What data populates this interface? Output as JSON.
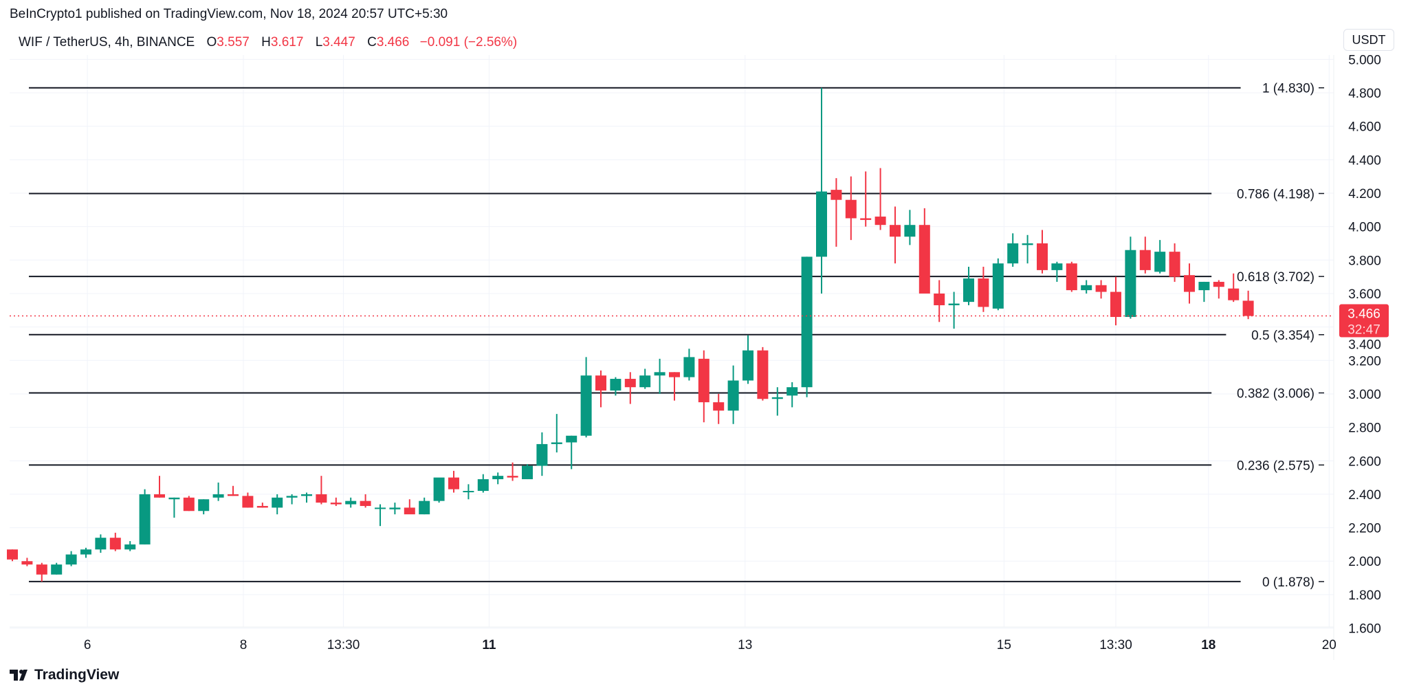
{
  "header": {
    "published": "BeInCrypto1 published on TradingView.com, Nov 18, 2024 20:57 UTC+5:30"
  },
  "legend": {
    "symbol": "WIF / TetherUS, 4h, BINANCE",
    "o_label": "O",
    "o": "3.557",
    "h_label": "H",
    "h": "3.617",
    "l_label": "L",
    "l": "3.447",
    "c_label": "C",
    "c": "3.466",
    "change": "−0.091 (−2.56%)"
  },
  "currency_button": "USDT",
  "branding": "TradingView",
  "colors": {
    "up": "#089981",
    "down": "#f23645",
    "fib": "#131722",
    "grid": "#f0f3fa"
  },
  "chart_data": {
    "type": "candlestick",
    "title": "WIF / TetherUS, 4h, BINANCE",
    "ylim": [
      1.55,
      5.0
    ],
    "y_ticks": [
      "5.000",
      "4.800",
      "4.600",
      "4.400",
      "4.200",
      "4.000",
      "3.800",
      "3.600",
      "3.400",
      "3.200",
      "3.000",
      "2.800",
      "2.600",
      "2.400",
      "2.200",
      "2.000",
      "1.800",
      "1.600"
    ],
    "x_ticks": [
      {
        "label": "6",
        "index": 5.1,
        "bold": false
      },
      {
        "label": "8",
        "index": 15.7,
        "bold": false
      },
      {
        "label": "13:30",
        "index": 22.5,
        "bold": false
      },
      {
        "label": "11",
        "index": 32.4,
        "bold": true
      },
      {
        "label": "13",
        "index": 49.8,
        "bold": false
      },
      {
        "label": "15",
        "index": 67.4,
        "bold": false
      },
      {
        "label": "13:30",
        "index": 75,
        "bold": false
      },
      {
        "label": "18",
        "index": 81.3,
        "bold": true
      },
      {
        "label": "20",
        "index": 89.5,
        "bold": false
      }
    ],
    "last_price": {
      "value": 3.466,
      "label": "3.466",
      "countdown": "32:47"
    },
    "fib_levels": [
      {
        "label": "1 (4.830)",
        "price": 4.83
      },
      {
        "label": "0.786 (4.198)",
        "price": 4.198
      },
      {
        "label": "0.618 (3.702)",
        "price": 3.702
      },
      {
        "label": "0.5 (3.354)",
        "price": 3.354
      },
      {
        "label": "0.382 (3.006)",
        "price": 3.006
      },
      {
        "label": "0.236 (2.575)",
        "price": 2.575
      },
      {
        "label": "0 (1.878)",
        "price": 1.878
      }
    ],
    "candles": [
      [
        2.07,
        2.07,
        2.0,
        2.01
      ],
      [
        2.0,
        2.02,
        1.97,
        1.98
      ],
      [
        1.98,
        1.99,
        1.878,
        1.92
      ],
      [
        1.92,
        1.99,
        1.92,
        1.98
      ],
      [
        1.98,
        2.06,
        1.97,
        2.04
      ],
      [
        2.04,
        2.08,
        2.02,
        2.07
      ],
      [
        2.07,
        2.16,
        2.05,
        2.14
      ],
      [
        2.14,
        2.17,
        2.06,
        2.07
      ],
      [
        2.07,
        2.12,
        2.06,
        2.1
      ],
      [
        2.1,
        2.43,
        2.1,
        2.4
      ],
      [
        2.4,
        2.51,
        2.38,
        2.38
      ],
      [
        2.37,
        2.38,
        2.26,
        2.38
      ],
      [
        2.38,
        2.39,
        2.3,
        2.3
      ],
      [
        2.3,
        2.37,
        2.28,
        2.37
      ],
      [
        2.38,
        2.47,
        2.36,
        2.4
      ],
      [
        2.4,
        2.45,
        2.39,
        2.39
      ],
      [
        2.39,
        2.41,
        2.32,
        2.32
      ],
      [
        2.33,
        2.35,
        2.32,
        2.32
      ],
      [
        2.32,
        2.4,
        2.28,
        2.38
      ],
      [
        2.38,
        2.4,
        2.34,
        2.39
      ],
      [
        2.39,
        2.41,
        2.35,
        2.4
      ],
      [
        2.4,
        2.51,
        2.34,
        2.35
      ],
      [
        2.35,
        2.38,
        2.33,
        2.34
      ],
      [
        2.34,
        2.38,
        2.32,
        2.36
      ],
      [
        2.36,
        2.4,
        2.32,
        2.33
      ],
      [
        2.32,
        2.34,
        2.21,
        2.32
      ],
      [
        2.31,
        2.35,
        2.28,
        2.32
      ],
      [
        2.32,
        2.37,
        2.29,
        2.28
      ],
      [
        2.28,
        2.38,
        2.28,
        2.36
      ],
      [
        2.36,
        2.49,
        2.35,
        2.5
      ],
      [
        2.5,
        2.54,
        2.41,
        2.43
      ],
      [
        2.42,
        2.46,
        2.37,
        2.42
      ],
      [
        2.42,
        2.52,
        2.41,
        2.49
      ],
      [
        2.49,
        2.53,
        2.46,
        2.51
      ],
      [
        2.51,
        2.59,
        2.48,
        2.5
      ],
      [
        2.49,
        2.58,
        2.49,
        2.57
      ],
      [
        2.57,
        2.77,
        2.51,
        2.7
      ],
      [
        2.7,
        2.88,
        2.65,
        2.71
      ],
      [
        2.71,
        2.75,
        2.55,
        2.75
      ],
      [
        2.75,
        3.22,
        2.74,
        3.11
      ],
      [
        3.11,
        3.14,
        2.92,
        3.02
      ],
      [
        3.02,
        3.1,
        2.99,
        3.09
      ],
      [
        3.09,
        3.13,
        2.94,
        3.04
      ],
      [
        3.04,
        3.15,
        3.03,
        3.11
      ],
      [
        3.11,
        3.21,
        3.0,
        3.13
      ],
      [
        3.13,
        3.13,
        2.96,
        3.1
      ],
      [
        3.1,
        3.27,
        3.08,
        3.22
      ],
      [
        3.21,
        3.26,
        2.83,
        2.95
      ],
      [
        2.95,
        3.0,
        2.82,
        2.9
      ],
      [
        2.9,
        3.17,
        2.82,
        3.08
      ],
      [
        3.08,
        3.35,
        3.06,
        3.26
      ],
      [
        3.26,
        3.28,
        2.96,
        2.97
      ],
      [
        2.97,
        3.04,
        2.87,
        2.98
      ],
      [
        2.99,
        3.07,
        2.92,
        3.04
      ],
      [
        3.04,
        3.82,
        2.98,
        3.82
      ],
      [
        3.82,
        4.83,
        3.6,
        4.21
      ],
      [
        4.22,
        4.29,
        3.88,
        4.16
      ],
      [
        4.16,
        4.3,
        3.92,
        4.05
      ],
      [
        4.05,
        4.33,
        4.0,
        4.04
      ],
      [
        4.06,
        4.35,
        3.98,
        4.01
      ],
      [
        4.01,
        4.12,
        3.78,
        3.94
      ],
      [
        3.94,
        4.1,
        3.89,
        4.01
      ],
      [
        4.01,
        4.11,
        3.63,
        3.6
      ],
      [
        3.6,
        3.68,
        3.43,
        3.53
      ],
      [
        3.53,
        3.61,
        3.39,
        3.54
      ],
      [
        3.55,
        3.76,
        3.53,
        3.69
      ],
      [
        3.69,
        3.76,
        3.49,
        3.52
      ],
      [
        3.51,
        3.81,
        3.5,
        3.78
      ],
      [
        3.78,
        3.96,
        3.76,
        3.9
      ],
      [
        3.89,
        3.95,
        3.78,
        3.9
      ],
      [
        3.9,
        3.98,
        3.72,
        3.74
      ],
      [
        3.74,
        3.79,
        3.67,
        3.78
      ],
      [
        3.78,
        3.79,
        3.61,
        3.62
      ],
      [
        3.62,
        3.68,
        3.6,
        3.65
      ],
      [
        3.65,
        3.68,
        3.57,
        3.61
      ],
      [
        3.61,
        3.7,
        3.41,
        3.46
      ],
      [
        3.46,
        3.94,
        3.45,
        3.86
      ],
      [
        3.86,
        3.94,
        3.72,
        3.74
      ],
      [
        3.73,
        3.92,
        3.72,
        3.85
      ],
      [
        3.85,
        3.9,
        3.67,
        3.7
      ],
      [
        3.71,
        3.78,
        3.54,
        3.61
      ],
      [
        3.62,
        3.67,
        3.55,
        3.67
      ],
      [
        3.67,
        3.68,
        3.57,
        3.64
      ],
      [
        3.63,
        3.72,
        3.55,
        3.56
      ],
      [
        3.557,
        3.617,
        3.447,
        3.466
      ]
    ]
  }
}
